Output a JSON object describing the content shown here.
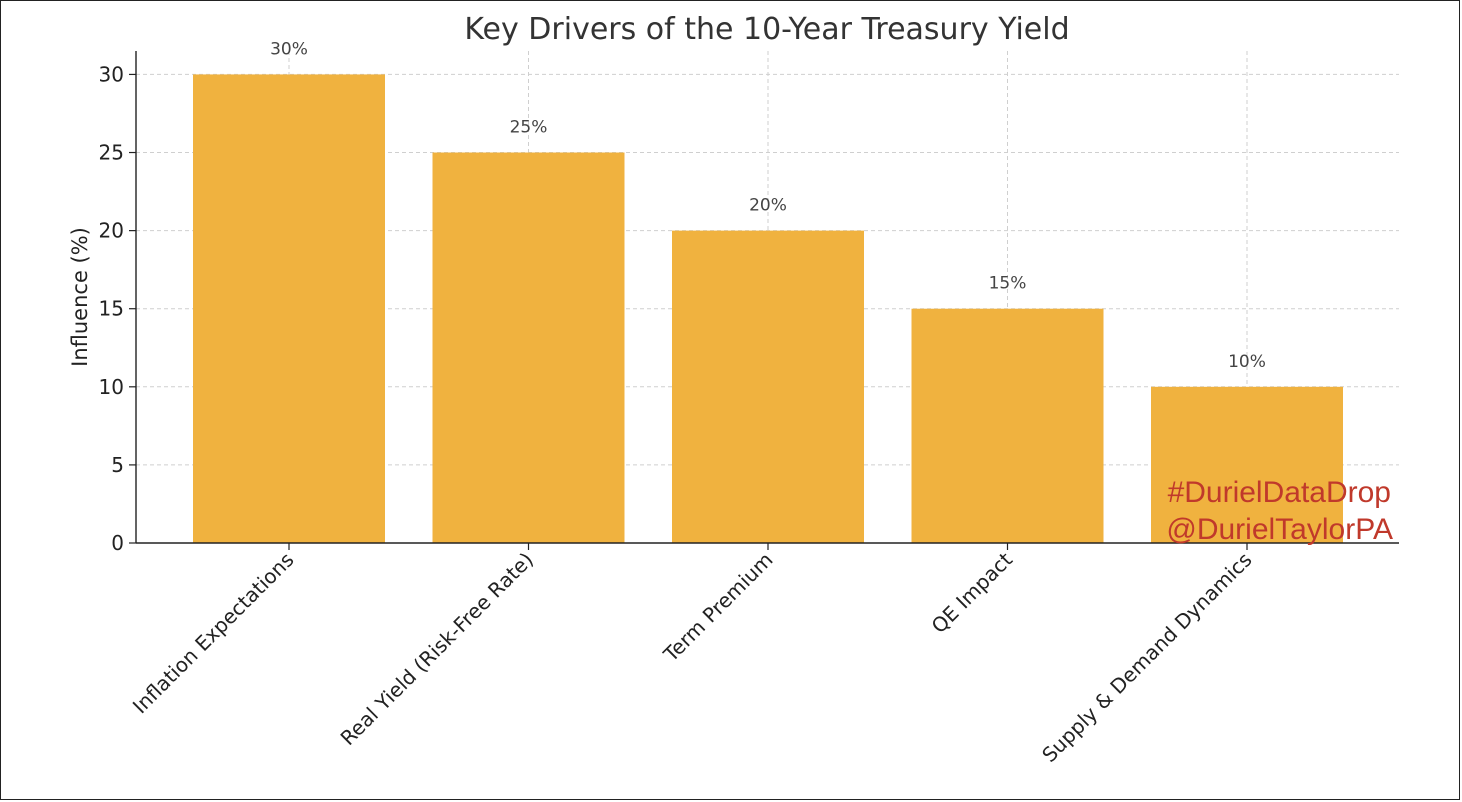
{
  "chart_data": {
    "type": "bar",
    "title": "Key Drivers of the 10-Year Treasury Yield",
    "xlabel": "",
    "ylabel": "Influence (%)",
    "categories": [
      "Inflation Expectations",
      "Real Yield (Risk-Free Rate)",
      "Term Premium",
      "QE Impact",
      "Supply & Demand Dynamics"
    ],
    "values": [
      30,
      25,
      20,
      15,
      10
    ],
    "data_labels": [
      "30%",
      "25%",
      "20%",
      "15%",
      "10%"
    ],
    "ylim": [
      0,
      31.5
    ],
    "yticks": [
      0,
      5,
      10,
      15,
      20,
      25,
      30
    ],
    "grid": true,
    "bar_color": "#F0B23F"
  },
  "watermark": {
    "line1": "#DurielDataDrop",
    "line2": "@DurielTaylorPA",
    "color": "#C0392B"
  }
}
